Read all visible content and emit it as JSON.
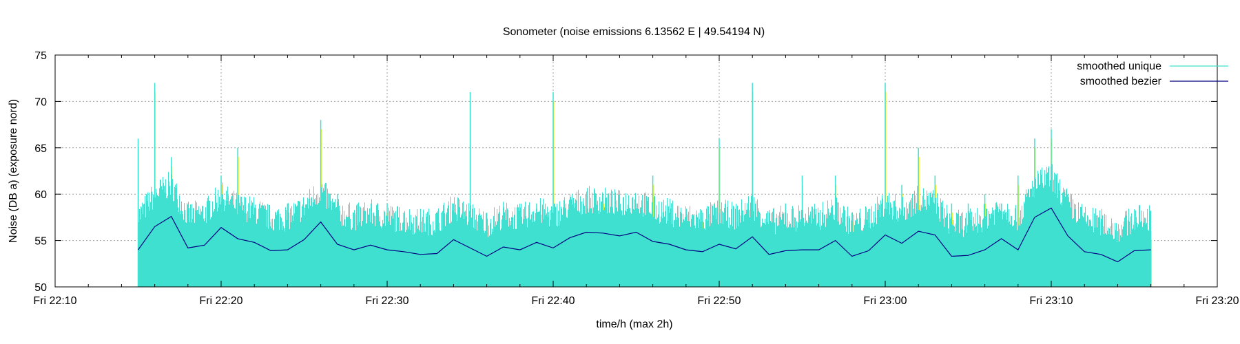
{
  "chart_data": {
    "type": "area",
    "title": "Sonometer (noise emissions 6.13562 E | 49.54194 N)",
    "xlabel": "time/h (max 2h)",
    "ylabel": "Noise (DB a) (exposure nord)",
    "xlim": [
      "Fri 22:10",
      "Fri 23:20"
    ],
    "ylim": [
      50,
      75
    ],
    "grid": true,
    "legend_position": "top-right",
    "x_ticks": [
      "Fri 22:10",
      "Fri 22:20",
      "Fri 22:30",
      "Fri 22:40",
      "Fri 22:50",
      "Fri 23:00",
      "Fri 23:10",
      "Fri 23:20"
    ],
    "y_ticks": [
      50,
      55,
      60,
      65,
      70,
      75
    ],
    "colors": {
      "raw": "#ffff00",
      "unique": "#40e0d0",
      "bezier": "#000080"
    },
    "series": [
      {
        "name": "smoothed unique",
        "style": "impulses",
        "x": [
          "22:15",
          "22:16",
          "22:17",
          "22:18",
          "22:19",
          "22:20",
          "22:21",
          "22:22",
          "22:23",
          "22:24",
          "22:25",
          "22:26",
          "22:27",
          "22:28",
          "22:29",
          "22:30",
          "22:31",
          "22:32",
          "22:33",
          "22:34",
          "22:35",
          "22:36",
          "22:37",
          "22:38",
          "22:39",
          "22:40",
          "22:41",
          "22:42",
          "22:43",
          "22:44",
          "22:45",
          "22:46",
          "22:47",
          "22:48",
          "22:49",
          "22:50",
          "22:51",
          "22:52",
          "22:53",
          "22:54",
          "22:55",
          "22:56",
          "22:57",
          "22:58",
          "22:59",
          "23:00",
          "23:01",
          "23:02",
          "23:03",
          "23:04",
          "23:05",
          "23:06",
          "23:07",
          "23:08",
          "23:09",
          "23:10",
          "23:11",
          "23:12",
          "23:13",
          "23:14",
          "23:15",
          "23:16"
        ],
        "y": [
          66,
          72,
          64,
          58,
          57,
          62,
          65,
          58,
          57,
          59,
          57,
          68,
          60,
          58,
          57,
          59,
          58,
          57,
          58,
          59,
          71,
          58,
          57,
          57,
          59,
          71,
          58,
          57,
          60,
          59,
          59,
          62,
          58,
          57,
          58,
          66,
          58,
          72,
          58,
          59,
          62,
          58,
          62,
          58,
          57,
          72,
          61,
          65,
          62,
          59,
          59,
          60,
          59,
          62,
          66,
          67,
          60,
          58,
          57,
          56,
          57,
          56
        ]
      },
      {
        "name": "smoothed bezier",
        "style": "line",
        "x": [
          "22:15",
          "22:16",
          "22:17",
          "22:18",
          "22:19",
          "22:20",
          "22:21",
          "22:22",
          "22:23",
          "22:24",
          "22:25",
          "22:26",
          "22:27",
          "22:28",
          "22:29",
          "22:30",
          "22:31",
          "22:32",
          "22:33",
          "22:34",
          "22:35",
          "22:36",
          "22:37",
          "22:38",
          "22:39",
          "22:40",
          "22:41",
          "22:42",
          "22:43",
          "22:44",
          "22:45",
          "22:46",
          "22:47",
          "22:48",
          "22:49",
          "22:50",
          "22:51",
          "22:52",
          "22:53",
          "22:54",
          "22:55",
          "22:56",
          "22:57",
          "22:58",
          "22:59",
          "23:00",
          "23:01",
          "23:02",
          "23:03",
          "23:04",
          "23:05",
          "23:06",
          "23:07",
          "23:08",
          "23:09",
          "23:10",
          "23:11",
          "23:12",
          "23:13",
          "23:14",
          "23:15",
          "23:16"
        ],
        "y": [
          54.0,
          56.5,
          57.6,
          54.2,
          54.5,
          56.4,
          55.2,
          54.8,
          53.9,
          54.0,
          55.1,
          57.0,
          54.6,
          54.0,
          54.5,
          54.0,
          53.8,
          53.5,
          53.6,
          55.1,
          54.2,
          53.3,
          54.3,
          54.0,
          54.8,
          54.2,
          55.3,
          55.9,
          55.8,
          55.5,
          55.9,
          54.9,
          54.6,
          54.0,
          53.8,
          54.6,
          54.1,
          55.4,
          53.5,
          53.9,
          54.0,
          54.0,
          55.0,
          53.3,
          53.9,
          55.6,
          54.7,
          56.0,
          55.6,
          53.3,
          53.4,
          54.0,
          55.2,
          54.0,
          57.5,
          58.5,
          55.5,
          53.8,
          53.5,
          52.7,
          53.9,
          54.0
        ]
      }
    ]
  }
}
